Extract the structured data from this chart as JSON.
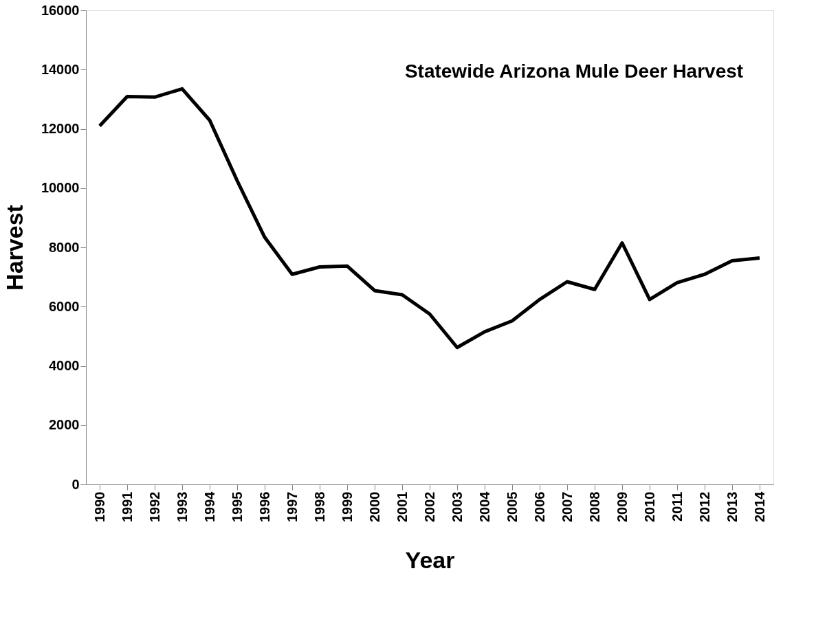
{
  "chart_data": {
    "type": "line",
    "title": "Statewide Arizona Mule Deer Harvest",
    "xlabel": "Year",
    "ylabel": "Harvest",
    "categories": [
      "1990",
      "1991",
      "1992",
      "1993",
      "1994",
      "1995",
      "1996",
      "1997",
      "1998",
      "1999",
      "2000",
      "2001",
      "2002",
      "2003",
      "2004",
      "2005",
      "2006",
      "2007",
      "2008",
      "2009",
      "2010",
      "2011",
      "2012",
      "2013",
      "2014"
    ],
    "series": [
      {
        "color": "#000000",
        "values": [
          12100,
          13090,
          13070,
          13350,
          12290,
          10250,
          8340,
          7090,
          7340,
          7370,
          6540,
          6400,
          5750,
          4620,
          5150,
          5520,
          6240,
          6840,
          6580,
          8150,
          6240,
          6810,
          7090,
          7550,
          7640
        ]
      }
    ],
    "ylim": [
      0,
      16000
    ],
    "yticks": [
      0,
      2000,
      4000,
      6000,
      8000,
      10000,
      12000,
      14000,
      16000
    ],
    "grid": false,
    "legend": false,
    "marker": "none",
    "line_style": "solid"
  }
}
